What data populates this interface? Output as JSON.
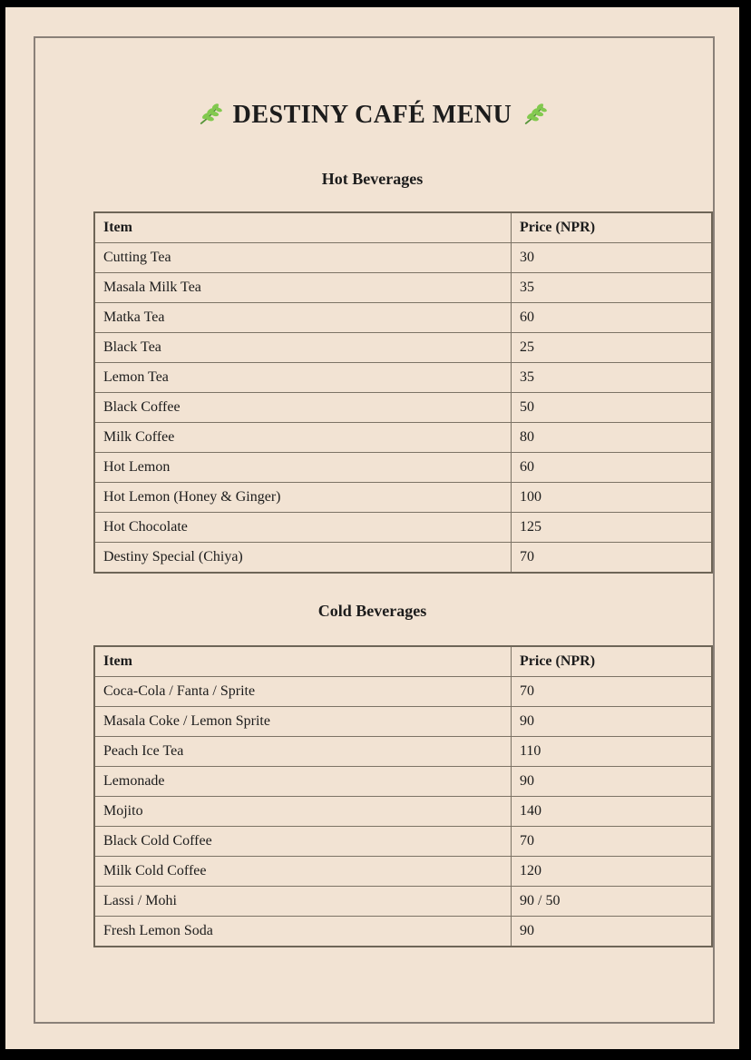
{
  "menu": {
    "title": "DESTINY CAFÉ MENU"
  },
  "colors": {
    "outer_frame": "#000000",
    "page_background": "#f2e3d3",
    "inner_border": "#8a8078",
    "table_border": "#7c7365",
    "text": "#1c1c1c",
    "leaf_green": "#82c94e",
    "leaf_stem": "#57953a"
  },
  "icons": {
    "title_left": "herb-sprig-icon",
    "title_right": "herb-sprig-icon"
  },
  "sections": [
    {
      "heading": "Hot Beverages",
      "columns": [
        "Item",
        "Price (NPR)"
      ],
      "rows": [
        [
          "Cutting Tea",
          "30"
        ],
        [
          "Masala Milk Tea",
          "35"
        ],
        [
          "Matka Tea",
          "60"
        ],
        [
          "Black Tea",
          "25"
        ],
        [
          "Lemon Tea",
          "35"
        ],
        [
          "Black Coffee",
          "50"
        ],
        [
          "Milk Coffee",
          "80"
        ],
        [
          "Hot Lemon",
          "60"
        ],
        [
          "Hot Lemon (Honey & Ginger)",
          "100"
        ],
        [
          "Hot Chocolate",
          "125"
        ],
        [
          "Destiny Special (Chiya)",
          "70"
        ]
      ]
    },
    {
      "heading": "Cold Beverages",
      "columns": [
        "Item",
        "Price (NPR)"
      ],
      "rows": [
        [
          "Coca-Cola / Fanta / Sprite",
          "70"
        ],
        [
          "Masala Coke / Lemon Sprite",
          "90"
        ],
        [
          "Peach Ice Tea",
          "110"
        ],
        [
          "Lemonade",
          "90"
        ],
        [
          "Mojito",
          "140"
        ],
        [
          "Black Cold Coffee",
          "70"
        ],
        [
          "Milk Cold Coffee",
          "120"
        ],
        [
          "Lassi / Mohi",
          "90 / 50"
        ],
        [
          "Fresh Lemon Soda",
          "90"
        ]
      ]
    }
  ]
}
